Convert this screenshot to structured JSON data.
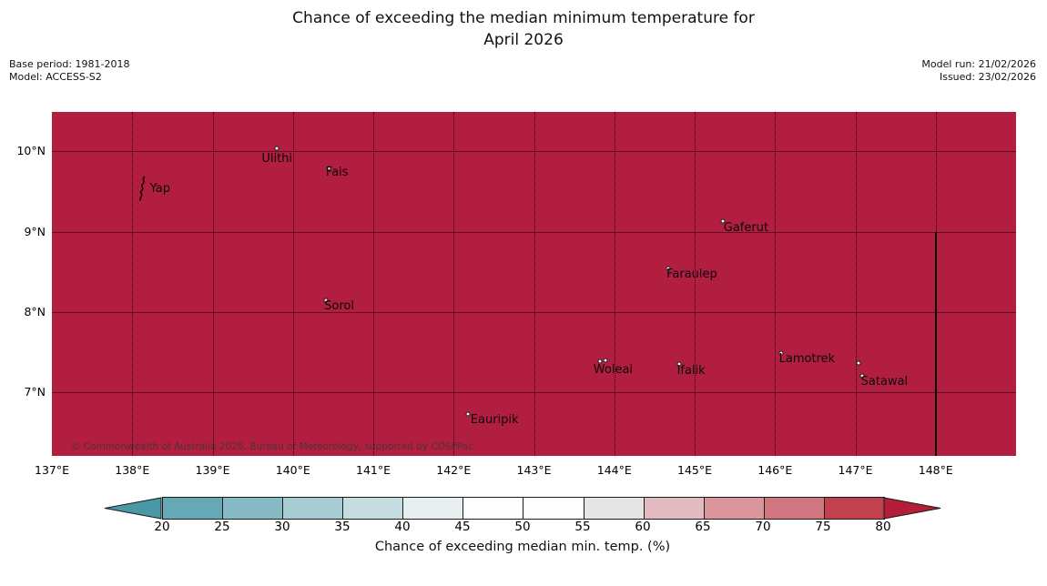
{
  "title": {
    "line1": "Chance of exceeding the median minimum temperature for",
    "line2": "April 2026"
  },
  "meta_left": {
    "base_period": "Base period: 1981-2018",
    "model": "Model: ACCESS-S2"
  },
  "meta_right": {
    "model_run": "Model run: 21/02/2026",
    "issued": "Issued: 23/02/2026"
  },
  "map": {
    "fill_color": "#b11e40",
    "copyright": "© Commonwealth of Australia 2026, Bureau of Meteorology, supported by COSPPac",
    "lon_range": [
      137,
      149
    ],
    "lat_range": [
      6.21,
      10.49
    ],
    "lon_ticks": [
      {
        "deg": 137,
        "label": "137°E"
      },
      {
        "deg": 138,
        "label": "138°E"
      },
      {
        "deg": 139,
        "label": "139°E"
      },
      {
        "deg": 140,
        "label": "140°E"
      },
      {
        "deg": 141,
        "label": "141°E"
      },
      {
        "deg": 142,
        "label": "142°E"
      },
      {
        "deg": 143,
        "label": "143°E"
      },
      {
        "deg": 144,
        "label": "144°E"
      },
      {
        "deg": 145,
        "label": "145°E"
      },
      {
        "deg": 146,
        "label": "146°E"
      },
      {
        "deg": 147,
        "label": "147°E"
      },
      {
        "deg": 148,
        "label": "148°E"
      }
    ],
    "lat_ticks": [
      {
        "deg": 10,
        "label": "10°N"
      },
      {
        "deg": 9,
        "label": "9°N"
      },
      {
        "deg": 8,
        "label": "8°N"
      },
      {
        "deg": 7,
        "label": "7°N"
      }
    ],
    "boundary_line": {
      "lon": 148,
      "lat_from": 9.0,
      "lat_to": 6.21
    },
    "islands": [
      {
        "name": "Yap",
        "marker": "outline",
        "mlon": 138.13,
        "mlat": 9.52,
        "llon": 138.22,
        "llat": 9.62
      },
      {
        "name": "Ulithi",
        "marker": "dot",
        "mlon": 139.8,
        "mlat": 10.04,
        "llon": 139.61,
        "llat": 9.99
      },
      {
        "name": "Fais",
        "marker": "dot",
        "mlon": 140.44,
        "mlat": 9.79,
        "llon": 140.41,
        "llat": 9.82
      },
      {
        "name": "Sorol",
        "marker": "dot",
        "mlon": 140.41,
        "mlat": 8.15,
        "llon": 140.39,
        "llat": 8.16
      },
      {
        "name": "Gaferut",
        "marker": "dot",
        "mlon": 145.35,
        "mlat": 9.13,
        "llon": 145.36,
        "llat": 9.13
      },
      {
        "name": "Faraulep",
        "marker": "dot",
        "mlon": 144.67,
        "mlat": 8.54,
        "llon": 144.65,
        "llat": 8.55
      },
      {
        "name": "Woleai",
        "marker": "dot",
        "mlon": 143.82,
        "mlat": 7.39,
        "llon": 143.74,
        "llat": 7.37
      },
      {
        "name": "Woleai-east-islet",
        "marker": "dot",
        "mlon": 143.89,
        "mlat": 7.4,
        "llon": null,
        "llat": null
      },
      {
        "name": "Ifalik",
        "marker": "dot",
        "mlon": 144.81,
        "mlat": 7.35,
        "llon": 144.78,
        "llat": 7.35
      },
      {
        "name": "Lamotrek",
        "marker": "dot",
        "mlon": 146.08,
        "mlat": 7.49,
        "llon": 146.05,
        "llat": 7.5
      },
      {
        "name": "West-Fayu-islet",
        "marker": "dot",
        "mlon": 147.04,
        "mlat": 7.37,
        "llon": null,
        "llat": null
      },
      {
        "name": "Satawal",
        "marker": "dot",
        "mlon": 147.08,
        "mlat": 7.21,
        "llon": 147.07,
        "llat": 7.22
      },
      {
        "name": "Eauripik",
        "marker": "dot",
        "mlon": 142.18,
        "mlat": 6.73,
        "llon": 142.21,
        "llat": 6.74
      }
    ]
  },
  "colorbar": {
    "label": "Chance of exceeding median min. temp. (%)",
    "ticks": [
      20,
      25,
      30,
      35,
      40,
      45,
      50,
      55,
      60,
      65,
      70,
      75,
      80
    ],
    "segment_colors": [
      "#66a9b6",
      "#86bac4",
      "#a5cdd3",
      "#c5dce0",
      "#e7eef0",
      "#fcfdfd",
      "#fdfdfd",
      "#e6e4e4",
      "#e2bac0",
      "#db959c",
      "#d0767f",
      "#c2414f"
    ],
    "under_color": "#4a97a6",
    "over_color": "#b41e39"
  },
  "chart_data": {
    "type": "heatmap",
    "title": "Chance of exceeding the median minimum temperature for April 2026",
    "lon_range_deg_e": [
      137,
      149
    ],
    "lat_range_deg_n": [
      6.2,
      10.5
    ],
    "uniform_value": "> 80% across entire mapped region",
    "colorbar_ticks": [
      20,
      25,
      30,
      35,
      40,
      45,
      50,
      55,
      60,
      65,
      70,
      75,
      80
    ],
    "colorbar_label": "Chance of exceeding median min. temp. (%)",
    "legend_position": "bottom"
  }
}
